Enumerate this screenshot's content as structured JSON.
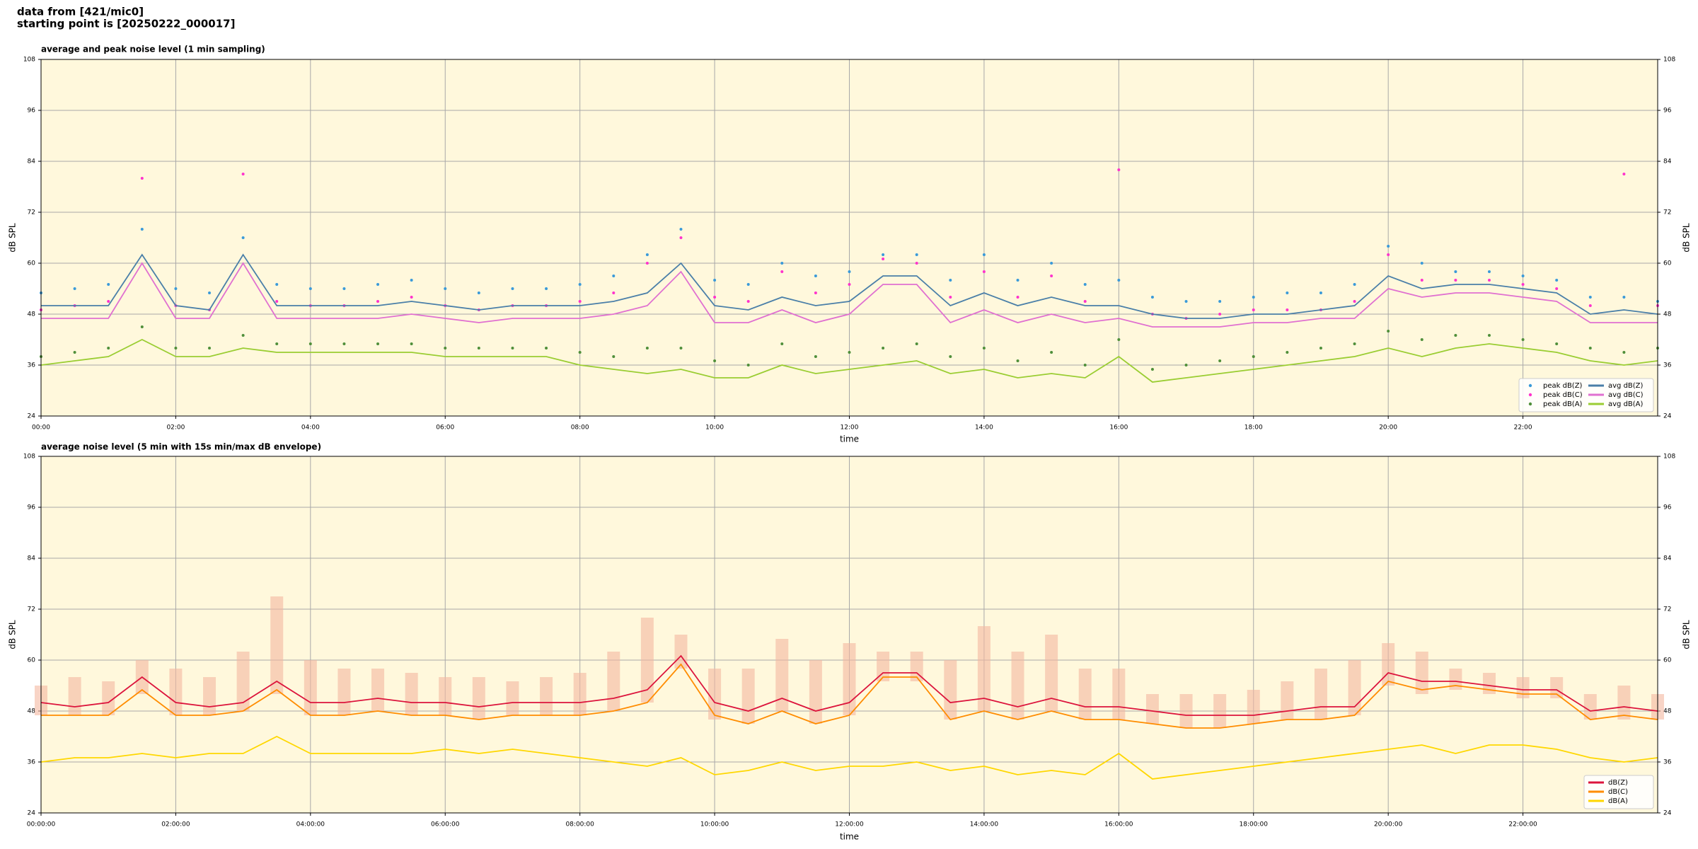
{
  "header": {
    "line1": "data from [421/mic0]",
    "line2": "starting point is [20250222_000017]"
  },
  "chart_data": [
    {
      "type": "line",
      "title": "average and peak noise level (1 min sampling)",
      "xlabel": "time",
      "ylabel": "dB SPL",
      "background": "#fff8dc",
      "grid": true,
      "legend": "lower right",
      "legend_columns": 2,
      "xlim": [
        0,
        24
      ],
      "ylim": [
        24,
        108
      ],
      "yticks": [
        24,
        36,
        48,
        60,
        72,
        84,
        96,
        108
      ],
      "xticks": [
        {
          "value": 0,
          "label": "00:00"
        },
        {
          "value": 2,
          "label": "02:00"
        },
        {
          "value": 4,
          "label": "04:00"
        },
        {
          "value": 6,
          "label": "06:00"
        },
        {
          "value": 8,
          "label": "08:00"
        },
        {
          "value": 10,
          "label": "10:00"
        },
        {
          "value": 12,
          "label": "12:00"
        },
        {
          "value": 14,
          "label": "14:00"
        },
        {
          "value": 16,
          "label": "16:00"
        },
        {
          "value": 18,
          "label": "18:00"
        },
        {
          "value": 20,
          "label": "20:00"
        },
        {
          "value": 22,
          "label": "22:00"
        }
      ],
      "x": [
        0,
        0.5,
        1,
        1.5,
        2,
        2.5,
        3,
        3.5,
        4,
        4.5,
        5,
        5.5,
        6,
        6.5,
        7,
        7.5,
        8,
        8.5,
        9,
        9.5,
        10,
        10.5,
        11,
        11.5,
        12,
        12.5,
        13,
        13.5,
        14,
        14.5,
        15,
        15.5,
        16,
        16.5,
        17,
        17.5,
        18,
        18.5,
        19,
        19.5,
        20,
        20.5,
        21,
        21.5,
        22,
        22.5,
        23,
        23.5,
        24
      ],
      "series": [
        {
          "name": "peak dB(Z)",
          "style": "dots",
          "color": "#3a9ad9",
          "values": [
            53,
            54,
            55,
            68,
            54,
            53,
            66,
            55,
            54,
            54,
            55,
            56,
            54,
            53,
            54,
            54,
            55,
            57,
            62,
            68,
            56,
            55,
            60,
            57,
            58,
            62,
            62,
            56,
            62,
            56,
            60,
            55,
            56,
            52,
            51,
            51,
            52,
            53,
            53,
            55,
            64,
            60,
            58,
            58,
            57,
            56,
            52,
            52,
            51
          ]
        },
        {
          "name": "peak dB(C)",
          "style": "dots",
          "color": "#ff33cc",
          "values": [
            49,
            50,
            51,
            80,
            50,
            49,
            81,
            51,
            50,
            50,
            51,
            52,
            50,
            49,
            50,
            50,
            51,
            53,
            60,
            66,
            52,
            51,
            58,
            53,
            55,
            61,
            60,
            52,
            58,
            52,
            57,
            51,
            82,
            48,
            47,
            48,
            49,
            49,
            49,
            51,
            62,
            56,
            56,
            56,
            55,
            54,
            50,
            81,
            50
          ]
        },
        {
          "name": "peak dB(A)",
          "style": "dots",
          "color": "#4f8f3a",
          "values": [
            38,
            39,
            40,
            45,
            40,
            40,
            43,
            41,
            41,
            41,
            41,
            41,
            40,
            40,
            40,
            40,
            39,
            38,
            40,
            40,
            37,
            36,
            41,
            38,
            39,
            40,
            41,
            38,
            40,
            37,
            39,
            36,
            42,
            35,
            36,
            37,
            38,
            39,
            40,
            41,
            44,
            42,
            43,
            43,
            42,
            41,
            40,
            39,
            40
          ]
        },
        {
          "name": "avg dB(Z)",
          "style": "line",
          "color": "#4a7fa8",
          "values": [
            50,
            50,
            50,
            62,
            50,
            49,
            62,
            50,
            50,
            50,
            50,
            51,
            50,
            49,
            50,
            50,
            50,
            51,
            53,
            60,
            50,
            49,
            52,
            50,
            51,
            57,
            57,
            50,
            53,
            50,
            52,
            50,
            50,
            48,
            47,
            47,
            48,
            48,
            49,
            50,
            57,
            54,
            55,
            55,
            54,
            53,
            48,
            49,
            48
          ]
        },
        {
          "name": "avg dB(C)",
          "style": "line",
          "color": "#e070d0",
          "values": [
            47,
            47,
            47,
            60,
            47,
            47,
            60,
            47,
            47,
            47,
            47,
            48,
            47,
            46,
            47,
            47,
            47,
            48,
            50,
            58,
            46,
            46,
            49,
            46,
            48,
            55,
            55,
            46,
            49,
            46,
            48,
            46,
            47,
            45,
            45,
            45,
            46,
            46,
            47,
            47,
            54,
            52,
            53,
            53,
            52,
            51,
            46,
            46,
            46
          ]
        },
        {
          "name": "avg dB(A)",
          "style": "line",
          "color": "#9acd32",
          "values": [
            36,
            37,
            38,
            42,
            38,
            38,
            40,
            39,
            39,
            39,
            39,
            39,
            38,
            38,
            38,
            38,
            36,
            35,
            34,
            35,
            33,
            33,
            36,
            34,
            35,
            36,
            37,
            34,
            35,
            33,
            34,
            33,
            38,
            32,
            33,
            34,
            35,
            36,
            37,
            38,
            40,
            38,
            40,
            41,
            40,
            39,
            37,
            36,
            37
          ]
        }
      ]
    },
    {
      "type": "line",
      "title": "average noise level (5 min with 15s min/max dB envelope)",
      "xlabel": "time",
      "ylabel": "dB SPL",
      "background": "#fff8dc",
      "grid": true,
      "legend": "lower right",
      "legend_columns": 1,
      "xlim": [
        0,
        24
      ],
      "ylim": [
        24,
        108
      ],
      "yticks": [
        24,
        36,
        48,
        60,
        72,
        84,
        96,
        108
      ],
      "xticks": [
        {
          "value": 0,
          "label": "00:00:00"
        },
        {
          "value": 2,
          "label": "02:00:00"
        },
        {
          "value": 4,
          "label": "04:00:00"
        },
        {
          "value": 6,
          "label": "06:00:00"
        },
        {
          "value": 8,
          "label": "08:00:00"
        },
        {
          "value": 10,
          "label": "10:00:00"
        },
        {
          "value": 12,
          "label": "12:00:00"
        },
        {
          "value": 14,
          "label": "14:00:00"
        },
        {
          "value": 16,
          "label": "16:00:00"
        },
        {
          "value": 18,
          "label": "18:00:00"
        },
        {
          "value": 20,
          "label": "20:00:00"
        },
        {
          "value": 22,
          "label": "22:00:00"
        }
      ],
      "x": [
        0,
        0.5,
        1,
        1.5,
        2,
        2.5,
        3,
        3.5,
        4,
        4.5,
        5,
        5.5,
        6,
        6.5,
        7,
        7.5,
        8,
        8.5,
        9,
        9.5,
        10,
        10.5,
        11,
        11.5,
        12,
        12.5,
        13,
        13.5,
        14,
        14.5,
        15,
        15.5,
        16,
        16.5,
        17,
        17.5,
        18,
        18.5,
        19,
        19.5,
        20,
        20.5,
        21,
        21.5,
        22,
        22.5,
        23,
        23.5,
        24
      ],
      "envelope": {
        "color": "#f4b8a0",
        "max": [
          54,
          56,
          55,
          60,
          58,
          56,
          62,
          75,
          60,
          58,
          58,
          57,
          56,
          56,
          55,
          56,
          57,
          62,
          70,
          66,
          58,
          58,
          65,
          60,
          64,
          62,
          62,
          60,
          68,
          62,
          66,
          58,
          58,
          52,
          52,
          52,
          53,
          55,
          58,
          60,
          64,
          62,
          58,
          57,
          56,
          56,
          52,
          54,
          52
        ],
        "min": [
          47,
          47,
          47,
          52,
          47,
          47,
          48,
          52,
          47,
          47,
          48,
          47,
          47,
          46,
          47,
          47,
          47,
          48,
          50,
          58,
          46,
          45,
          48,
          45,
          47,
          55,
          55,
          46,
          48,
          46,
          48,
          46,
          46,
          45,
          44,
          44,
          45,
          46,
          46,
          47,
          54,
          52,
          53,
          52,
          51,
          51,
          46,
          46,
          46
        ]
      },
      "series": [
        {
          "name": "dB(Z)",
          "style": "line",
          "color": "#dc143c",
          "values": [
            50,
            49,
            50,
            56,
            50,
            49,
            50,
            55,
            50,
            50,
            51,
            50,
            50,
            49,
            50,
            50,
            50,
            51,
            53,
            61,
            50,
            48,
            51,
            48,
            50,
            57,
            57,
            50,
            51,
            49,
            51,
            49,
            49,
            48,
            47,
            47,
            47,
            48,
            49,
            49,
            57,
            55,
            55,
            54,
            53,
            53,
            48,
            49,
            48
          ]
        },
        {
          "name": "dB(C)",
          "style": "line",
          "color": "#ff8c00",
          "values": [
            47,
            47,
            47,
            53,
            47,
            47,
            48,
            53,
            47,
            47,
            48,
            47,
            47,
            46,
            47,
            47,
            47,
            48,
            50,
            59,
            47,
            45,
            48,
            45,
            47,
            56,
            56,
            46,
            48,
            46,
            48,
            46,
            46,
            45,
            44,
            44,
            45,
            46,
            46,
            47,
            55,
            53,
            54,
            53,
            52,
            52,
            46,
            47,
            46
          ]
        },
        {
          "name": "dB(A)",
          "style": "line",
          "color": "#ffd700",
          "values": [
            36,
            37,
            37,
            38,
            37,
            38,
            38,
            42,
            38,
            38,
            38,
            38,
            39,
            38,
            39,
            38,
            37,
            36,
            35,
            37,
            33,
            34,
            36,
            34,
            35,
            35,
            36,
            34,
            35,
            33,
            34,
            33,
            38,
            32,
            33,
            34,
            35,
            36,
            37,
            38,
            39,
            40,
            38,
            40,
            40,
            39,
            37,
            36,
            37
          ]
        }
      ]
    }
  ]
}
